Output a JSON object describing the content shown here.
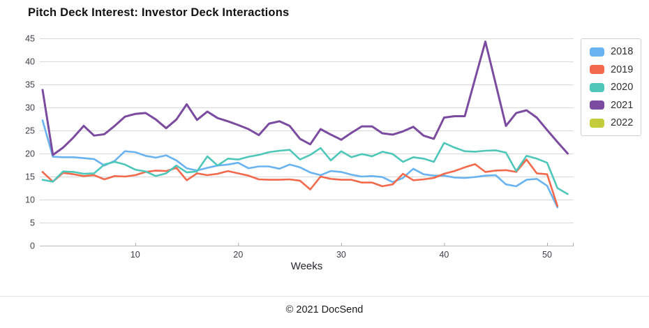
{
  "header": {
    "title": "Pitch Deck Interest: Investor Deck Interactions"
  },
  "footer": {
    "copyright": "© 2021 DocSend"
  },
  "chart_data": {
    "type": "line",
    "title": "Pitch Deck Interest: Investor Deck Interactions",
    "xlabel": "Weeks",
    "ylabel": "",
    "x_ticks": [
      10,
      20,
      30,
      40,
      50
    ],
    "y_ticks": [
      0,
      5,
      10,
      15,
      20,
      25,
      30,
      35,
      40,
      45
    ],
    "ylim": [
      0,
      45
    ],
    "xlim_weeks": [
      1,
      53
    ],
    "grid": "horizontal",
    "legend_position": "top-right",
    "weeks": [
      1,
      2,
      3,
      4,
      5,
      6,
      7,
      8,
      9,
      10,
      11,
      12,
      13,
      14,
      15,
      16,
      17,
      18,
      19,
      20,
      21,
      22,
      23,
      24,
      25,
      26,
      27,
      28,
      29,
      30,
      31,
      32,
      33,
      34,
      35,
      36,
      37,
      38,
      39,
      40,
      41,
      42,
      43,
      44,
      45,
      46,
      47,
      48,
      49,
      50,
      51,
      52
    ],
    "series": [
      {
        "name": "2018",
        "color": "#68b3f0",
        "values": [
          27.2,
          19.3,
          19.2,
          19.2,
          19.0,
          18.8,
          17.4,
          18.4,
          20.5,
          20.3,
          19.5,
          19.1,
          19.6,
          18.5,
          16.8,
          16.3,
          16.9,
          17.4,
          17.6,
          18.0,
          16.8,
          17.2,
          17.2,
          16.7,
          17.6,
          17.0,
          15.9,
          15.3,
          16.2,
          16.0,
          15.4,
          15.0,
          15.1,
          14.9,
          13.8,
          14.7,
          16.7,
          15.5,
          15.2,
          15.2,
          14.8,
          14.7,
          14.9,
          15.2,
          15.3,
          13.3,
          12.9,
          14.3,
          14.5,
          13.0,
          8.3,
          null
        ]
      },
      {
        "name": "2019",
        "color": "#f3694c",
        "values": [
          16.0,
          13.9,
          15.8,
          15.5,
          15.1,
          15.3,
          14.4,
          15.1,
          15.0,
          15.3,
          16.0,
          16.3,
          16.2,
          16.9,
          14.2,
          15.7,
          15.3,
          15.6,
          16.2,
          15.7,
          15.2,
          14.4,
          14.3,
          14.3,
          14.4,
          14.1,
          12.2,
          15.0,
          14.5,
          14.3,
          14.3,
          13.7,
          13.7,
          12.9,
          13.3,
          15.6,
          14.2,
          14.4,
          14.7,
          15.6,
          16.2,
          17.0,
          17.7,
          16.0,
          16.3,
          16.4,
          16.0,
          18.7,
          15.7,
          15.5,
          8.6,
          null
        ]
      },
      {
        "name": "2020",
        "color": "#4ec7ba",
        "values": [
          14.3,
          13.9,
          16.1,
          16.0,
          15.6,
          15.7,
          17.6,
          18.2,
          17.6,
          16.5,
          16.1,
          15.1,
          15.7,
          17.4,
          15.9,
          16.1,
          19.4,
          17.4,
          18.9,
          18.7,
          19.3,
          19.7,
          20.3,
          20.6,
          20.8,
          18.7,
          19.7,
          21.2,
          18.5,
          20.5,
          19.2,
          19.9,
          19.4,
          20.4,
          19.9,
          18.2,
          19.2,
          18.9,
          18.2,
          22.3,
          21.3,
          20.5,
          20.4,
          20.6,
          20.7,
          20.2,
          16.2,
          19.5,
          18.9,
          18.0,
          12.5,
          11.2
        ]
      },
      {
        "name": "2021",
        "color": "#7b4ba0",
        "values": [
          33.8,
          19.7,
          21.3,
          23.5,
          26.0,
          23.9,
          24.2,
          26.0,
          28.0,
          28.6,
          28.8,
          27.4,
          25.5,
          27.4,
          30.7,
          27.3,
          29.1,
          27.7,
          27.0,
          26.2,
          25.3,
          24.0,
          26.5,
          27.0,
          26.0,
          23.2,
          22.0,
          25.3,
          24.1,
          23.0,
          24.5,
          25.9,
          25.9,
          24.4,
          24.1,
          24.8,
          25.8,
          23.9,
          23.2,
          27.8,
          28.1,
          28.1,
          36.2,
          44.3,
          35.2,
          26.0,
          28.8,
          29.4,
          27.8,
          25.1,
          22.5,
          20.0
        ]
      },
      {
        "name": "2022",
        "color": "#c3cc3a",
        "values": []
      }
    ]
  }
}
